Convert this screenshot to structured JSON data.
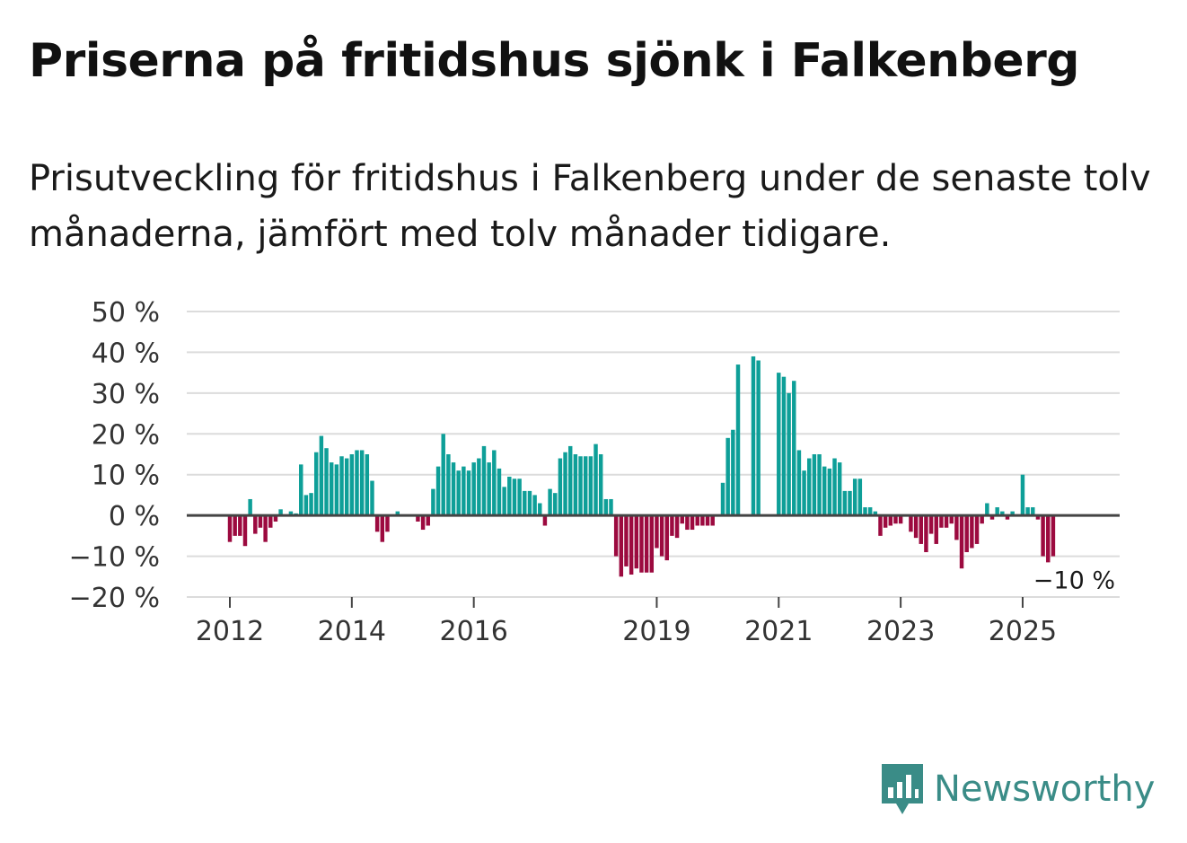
{
  "title": "Priserna på fritidshus sjönk i Falkenberg",
  "subtitle": "Prisutveckling för fritidshus i Falkenberg under de senaste tolv månaderna, jämfört med tolv månader tidigare.",
  "brand": {
    "name": "Newsworthy",
    "color": "#3a8c87"
  },
  "chart_data": {
    "type": "bar",
    "title": "Priserna på fritidshus sjönk i Falkenberg",
    "xlabel": "",
    "ylabel": "",
    "ylim": [
      -20,
      50
    ],
    "yticks": [
      {
        "value": 50,
        "label": "50 %"
      },
      {
        "value": 40,
        "label": "40 %"
      },
      {
        "value": 30,
        "label": "30 %"
      },
      {
        "value": 20,
        "label": "20 %"
      },
      {
        "value": 10,
        "label": "10 %"
      },
      {
        "value": 0,
        "label": "0 %"
      },
      {
        "value": -10,
        "label": "−10 %"
      },
      {
        "value": -20,
        "label": "−20 %"
      }
    ],
    "xticks": [
      {
        "month_index": 0,
        "label": "2012"
      },
      {
        "month_index": 24,
        "label": "2014"
      },
      {
        "month_index": 48,
        "label": "2016"
      },
      {
        "month_index": 84,
        "label": "2019"
      },
      {
        "month_index": 108,
        "label": "2021"
      },
      {
        "month_index": 132,
        "label": "2023"
      },
      {
        "month_index": 156,
        "label": "2025"
      }
    ],
    "start": "2012-01",
    "positive_color": "#0e9f98",
    "negative_color": "#9c0a3f",
    "grid": true,
    "last_label": "−10 %",
    "values": [
      -6.5,
      -5,
      -5,
      -7.5,
      4,
      -4.5,
      -3,
      -6.5,
      -3,
      -1.5,
      1.5,
      0,
      1,
      0.5,
      12.5,
      5,
      5.5,
      15.5,
      19.5,
      16.5,
      13,
      12.5,
      14.5,
      14,
      15,
      16,
      16,
      15,
      8.5,
      -4,
      -6.5,
      -4,
      0,
      1,
      0,
      0,
      0,
      -1.5,
      -3.5,
      -2.5,
      6.5,
      12,
      20,
      15,
      13,
      11,
      12,
      11,
      13,
      14,
      17,
      13,
      16,
      11.5,
      7,
      9.5,
      9,
      9,
      6,
      6,
      5,
      3,
      -2.5,
      6.5,
      5.5,
      14,
      15.5,
      17,
      15,
      14.5,
      14.5,
      14.5,
      17.5,
      15,
      4,
      4,
      -10,
      -15,
      -12.5,
      -14.5,
      -13,
      -14,
      -14,
      -14,
      -8,
      -10,
      -11,
      -5,
      -5.5,
      -2,
      -3.5,
      -3.5,
      -2.5,
      -2.5,
      -2.5,
      -2.5,
      0,
      8,
      19,
      21,
      37,
      0,
      0,
      39,
      38,
      0,
      0,
      0,
      35,
      34,
      30,
      33,
      16,
      11,
      14,
      15,
      15,
      12,
      11.5,
      14,
      13,
      6,
      6,
      9,
      9,
      2,
      2,
      1,
      -5,
      -3,
      -2.5,
      -2,
      -2,
      0,
      -4,
      -5.5,
      -7,
      -9,
      -4.5,
      -7,
      -3,
      -3,
      -2,
      -6,
      -13,
      -9,
      -8,
      -7,
      -2,
      3,
      -1,
      2,
      1,
      -1,
      1,
      0,
      10,
      2,
      2,
      -1,
      -10,
      -11.5,
      -10
    ]
  }
}
